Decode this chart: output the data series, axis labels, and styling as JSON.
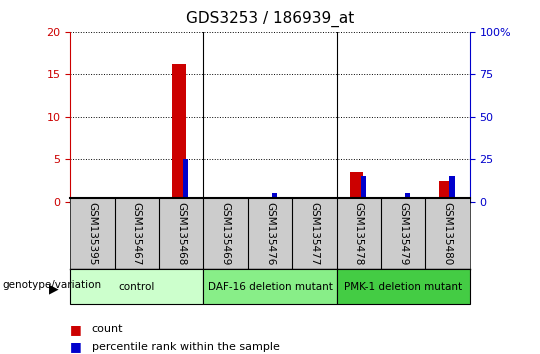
{
  "title": "GDS3253 / 186939_at",
  "samples": [
    "GSM135395",
    "GSM135467",
    "GSM135468",
    "GSM135469",
    "GSM135476",
    "GSM135477",
    "GSM135478",
    "GSM135479",
    "GSM135480"
  ],
  "count_values": [
    0,
    0,
    16.2,
    0,
    0,
    0,
    3.5,
    0,
    2.5
  ],
  "percentile_values": [
    0,
    0,
    25,
    0,
    5,
    0,
    15,
    5,
    15
  ],
  "ylim_left": [
    0,
    20
  ],
  "ylim_right": [
    0,
    100
  ],
  "yticks_left": [
    0,
    5,
    10,
    15,
    20
  ],
  "yticks_right": [
    0,
    25,
    50,
    75,
    100
  ],
  "count_color": "#cc0000",
  "percentile_color": "#0000cc",
  "group_labels": [
    "control",
    "DAF-16 deletion mutant",
    "PMK-1 deletion mutant"
  ],
  "group_ranges": [
    [
      0,
      3
    ],
    [
      3,
      6
    ],
    [
      6,
      9
    ]
  ],
  "group_colors": [
    "#ccffcc",
    "#88ee88",
    "#44cc44"
  ],
  "left_axis_color": "#cc0000",
  "right_axis_color": "#0000cc",
  "sample_bg_color": "#cccccc",
  "fig_width": 5.4,
  "fig_height": 3.54,
  "dpi": 100
}
